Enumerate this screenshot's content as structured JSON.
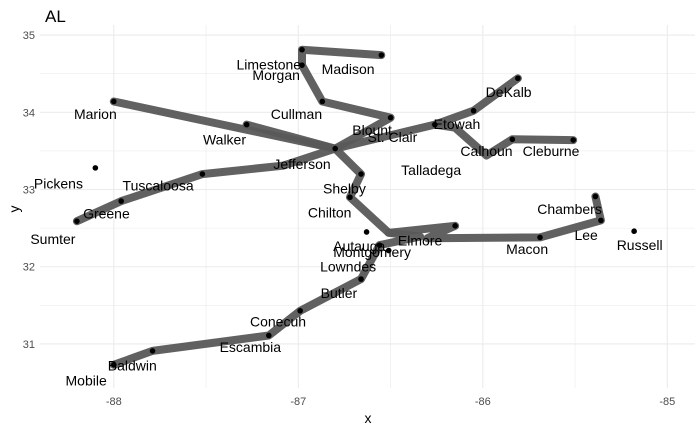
{
  "chart_data": {
    "type": "scatter",
    "title": "AL",
    "xlabel": "x",
    "ylabel": "y",
    "xlim": [
      -88.4,
      -84.85
    ],
    "ylim": [
      30.43,
      35.13
    ],
    "xticks": [
      -88,
      -87,
      -86,
      -85
    ],
    "xtick_labels": [
      "-88",
      "-87",
      "-86",
      "-85"
    ],
    "yticks": [
      31,
      32,
      33,
      34,
      35
    ],
    "ytick_labels": [
      "31",
      "32",
      "33",
      "34",
      "35"
    ],
    "grid": true,
    "colors": {
      "path": "#595959",
      "point": "#000000",
      "grid": "#ebebeb",
      "text": "#000000",
      "tick": "#4d4d4d"
    },
    "points": [
      {
        "name": "Limestone",
        "x": -86.98,
        "y": 34.81,
        "lx": -87.16,
        "ly": 34.62
      },
      {
        "name": "Madison",
        "x": -86.55,
        "y": 34.74,
        "lx": -86.73,
        "ly": 34.56
      },
      {
        "name": "Morgan",
        "x": -86.98,
        "y": 34.6,
        "lx": -87.12,
        "ly": 34.48
      },
      {
        "name": "Marion",
        "x": -87.98,
        "y": 34.14,
        "lx": -88.1,
        "ly": 33.98
      },
      {
        "name": "Cullman",
        "x": -86.87,
        "y": 34.13,
        "lx": -87.01,
        "ly": 33.98
      },
      {
        "name": "Walker",
        "x": -87.28,
        "y": 33.81,
        "lx": -87.4,
        "ly": 33.65
      },
      {
        "name": "Blount",
        "x": -86.5,
        "y": 33.93,
        "lx": -86.6,
        "ly": 33.77
      },
      {
        "name": "Etowah",
        "x": -86.05,
        "y": 34.02,
        "lx": -86.14,
        "ly": 33.85
      },
      {
        "name": "DeKalb",
        "x": -85.81,
        "y": 34.43,
        "lx": -85.86,
        "ly": 34.26
      },
      {
        "name": "St. Clair",
        "x": -86.32,
        "y": 33.71,
        "lx": -86.49,
        "ly": 33.68
      },
      {
        "name": "Jefferson",
        "x": -86.8,
        "y": 33.53,
        "lx": -86.98,
        "ly": 33.33
      },
      {
        "name": "Calhoun",
        "x": -85.83,
        "y": 33.77,
        "lx": -85.98,
        "ly": 33.5
      },
      {
        "name": "Cleburne",
        "x": -85.51,
        "y": 33.67,
        "lx": -85.63,
        "ly": 33.5
      },
      {
        "name": "Talladega",
        "x": -86.17,
        "y": 33.38,
        "lx": -86.28,
        "ly": 33.25
      },
      {
        "name": "Pickens",
        "x": -88.1,
        "y": 33.28,
        "lx": -88.3,
        "ly": 33.08
      },
      {
        "name": "Tuscaloosa",
        "x": -87.52,
        "y": 33.28,
        "lx": -87.76,
        "ly": 33.05
      },
      {
        "name": "Shelby",
        "x": -86.66,
        "y": 33.26,
        "lx": -86.75,
        "ly": 33.01
      },
      {
        "name": "Greene",
        "x": -87.96,
        "y": 32.85,
        "lx": -88.04,
        "ly": 32.69
      },
      {
        "name": "Sumter",
        "x": -88.2,
        "y": 32.59,
        "lx": -88.33,
        "ly": 32.36
      },
      {
        "name": "Chilton",
        "x": -86.72,
        "y": 32.85,
        "lx": -86.83,
        "ly": 32.7
      },
      {
        "name": "Chambers",
        "x": -85.39,
        "y": 32.91,
        "lx": -85.53,
        "ly": 32.75
      },
      {
        "name": "Lee",
        "x": -85.36,
        "y": 32.6,
        "lx": -85.44,
        "ly": 32.41
      },
      {
        "name": "Elmore",
        "x": -86.15,
        "y": 32.59,
        "lx": -86.34,
        "ly": 32.34
      },
      {
        "name": "Autauga",
        "x": -86.64,
        "y": 32.53,
        "lx": -86.67,
        "ly": 32.27
      },
      {
        "name": "Montgomery",
        "x": -86.21,
        "y": 32.22,
        "lx": -86.6,
        "ly": 32.19
      },
      {
        "name": "Macon",
        "x": -85.69,
        "y": 32.39,
        "lx": -85.76,
        "ly": 32.23
      },
      {
        "name": "Russell",
        "x": -85.18,
        "y": 32.29,
        "lx": -85.15,
        "ly": 32.28
      },
      {
        "name": "Lowndes",
        "x": -86.65,
        "y": 32.16,
        "lx": -86.73,
        "ly": 32.0
      },
      {
        "name": "Butler",
        "x": -86.68,
        "y": 31.75,
        "lx": -86.78,
        "ly": 31.66
      },
      {
        "name": "Conecuh",
        "x": -86.99,
        "y": 31.43,
        "lx": -87.11,
        "ly": 31.29
      },
      {
        "name": "Escambia",
        "x": -87.16,
        "y": 31.13,
        "lx": -87.26,
        "ly": 30.96
      },
      {
        "name": "Baldwin",
        "x": -87.74,
        "y": 30.92,
        "lx": -87.9,
        "ly": 30.72
      },
      {
        "name": "Mobile",
        "x": -88.0,
        "y": 30.67,
        "lx": -88.15,
        "ly": 30.53
      }
    ],
    "dots": [
      [
        -86.98,
        34.61
      ],
      [
        -86.55,
        34.74
      ],
      [
        -86.98,
        34.81
      ],
      [
        -86.87,
        34.14
      ],
      [
        -88.0,
        34.14
      ],
      [
        -87.28,
        33.84
      ],
      [
        -86.5,
        33.93
      ],
      [
        -86.05,
        34.02
      ],
      [
        -85.81,
        34.44
      ],
      [
        -86.26,
        33.84
      ],
      [
        -85.84,
        33.65
      ],
      [
        -85.51,
        33.64
      ],
      [
        -86.8,
        33.53
      ],
      [
        -88.1,
        33.28
      ],
      [
        -87.52,
        33.2
      ],
      [
        -86.66,
        33.2
      ],
      [
        -87.96,
        32.85
      ],
      [
        -86.72,
        32.9
      ],
      [
        -88.2,
        32.59
      ],
      [
        -85.39,
        32.91
      ],
      [
        -85.36,
        32.6
      ],
      [
        -86.15,
        32.53
      ],
      [
        -86.63,
        32.45
      ],
      [
        -86.51,
        32.21
      ],
      [
        -85.69,
        32.38
      ],
      [
        -85.18,
        32.46
      ],
      [
        -86.66,
        31.84
      ],
      [
        -86.99,
        31.43
      ],
      [
        -87.16,
        31.11
      ],
      [
        -87.79,
        30.91
      ],
      [
        -88.0,
        30.73
      ],
      [
        -86.56,
        32.28
      ]
    ],
    "paths": [
      [
        [
          -86.55,
          34.74
        ],
        [
          -86.98,
          34.81
        ],
        [
          -86.98,
          34.61
        ],
        [
          -86.87,
          34.14
        ],
        [
          -86.5,
          33.93
        ],
        [
          -86.8,
          33.53
        ],
        [
          -88.0,
          34.14
        ]
      ],
      [
        [
          -86.8,
          33.53
        ],
        [
          -86.26,
          33.84
        ],
        [
          -86.05,
          34.02
        ],
        [
          -85.81,
          34.44
        ]
      ],
      [
        [
          -86.26,
          33.84
        ],
        [
          -86.15,
          33.8
        ],
        [
          -85.98,
          33.44
        ],
        [
          -85.84,
          33.65
        ],
        [
          -85.51,
          33.64
        ]
      ],
      [
        [
          -88.2,
          32.59
        ],
        [
          -87.96,
          32.85
        ],
        [
          -87.52,
          33.2
        ],
        [
          -87.08,
          33.31
        ],
        [
          -86.8,
          33.53
        ]
      ],
      [
        [
          -87.28,
          33.84
        ],
        [
          -86.8,
          33.53
        ],
        [
          -86.66,
          33.2
        ],
        [
          -86.72,
          32.9
        ],
        [
          -86.51,
          32.44
        ],
        [
          -86.34,
          32.39
        ],
        [
          -86.56,
          32.28
        ],
        [
          -86.66,
          31.84
        ],
        [
          -86.99,
          31.43
        ],
        [
          -87.16,
          31.11
        ],
        [
          -87.79,
          30.91
        ],
        [
          -88.0,
          30.73
        ]
      ],
      [
        [
          -86.51,
          32.44
        ],
        [
          -86.15,
          32.53
        ],
        [
          -86.3,
          32.37
        ],
        [
          -85.69,
          32.38
        ],
        [
          -85.36,
          32.6
        ],
        [
          -85.39,
          32.91
        ]
      ]
    ]
  }
}
